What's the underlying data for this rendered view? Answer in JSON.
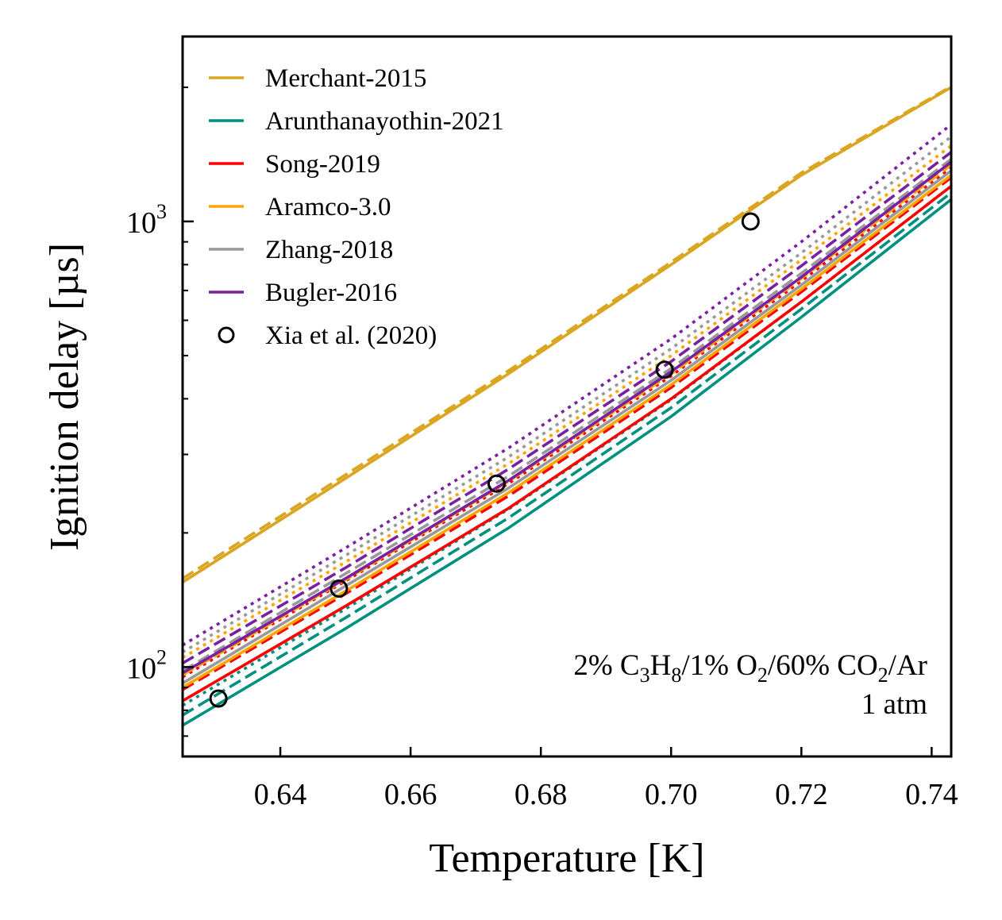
{
  "chart_data": {
    "type": "line",
    "xlabel": "Temperature [K]",
    "ylabel": "Ignition delay [µs]",
    "yscale": "log",
    "xlim": [
      0.625,
      0.743
    ],
    "ylim": [
      63,
      2600
    ],
    "xticks": [
      "0.64",
      "0.66",
      "0.68",
      "0.70",
      "0.72",
      "0.74"
    ],
    "yticks": [
      {
        "base": "10",
        "exp": "2"
      },
      {
        "base": "10",
        "exp": "3"
      }
    ],
    "legend_position": "upper-left",
    "annotation": {
      "line1": {
        "a": "2% C",
        "b": "3",
        "c": "H",
        "d": "8",
        "e": "/1% O",
        "f": "2",
        "g": "/60% CO",
        "h": "2",
        "i": "/Ar"
      },
      "line2": "1 atm"
    },
    "line_styles_note": "solid, dashed and dotted variants per mechanism",
    "series": [
      {
        "name": "Merchant-2015",
        "color": "#DAA520",
        "solid": [
          [
            0.625,
            155
          ],
          [
            0.65,
            265
          ],
          [
            0.675,
            455
          ],
          [
            0.7,
            800
          ],
          [
            0.72,
            1270
          ],
          [
            0.743,
            2000
          ]
        ],
        "dashed": [
          [
            0.625,
            158
          ],
          [
            0.65,
            270
          ],
          [
            0.675,
            462
          ],
          [
            0.7,
            810
          ],
          [
            0.72,
            1285
          ],
          [
            0.743,
            2010
          ]
        ],
        "dotted": null
      },
      {
        "name": "Arunthanayothin-2021",
        "color": "#009080",
        "solid": [
          [
            0.625,
            74
          ],
          [
            0.65,
            122
          ],
          [
            0.675,
            205
          ],
          [
            0.7,
            365
          ],
          [
            0.72,
            610
          ],
          [
            0.743,
            1120
          ]
        ],
        "dashed": [
          [
            0.625,
            78
          ],
          [
            0.65,
            129
          ],
          [
            0.675,
            216
          ],
          [
            0.7,
            382
          ],
          [
            0.72,
            636
          ],
          [
            0.743,
            1160
          ]
        ],
        "dotted": [
          [
            0.625,
            82
          ],
          [
            0.65,
            135
          ],
          [
            0.675,
            226
          ],
          [
            0.7,
            398
          ],
          [
            0.72,
            660
          ],
          [
            0.743,
            1200
          ]
        ]
      },
      {
        "name": "Song-2019",
        "color": "#FF0000",
        "solid": [
          [
            0.625,
            84
          ],
          [
            0.65,
            137
          ],
          [
            0.675,
            227
          ],
          [
            0.7,
            400
          ],
          [
            0.72,
            660
          ],
          [
            0.743,
            1200
          ]
        ],
        "dashed": [
          [
            0.625,
            89
          ],
          [
            0.65,
            146
          ],
          [
            0.675,
            242
          ],
          [
            0.7,
            424
          ],
          [
            0.72,
            695
          ],
          [
            0.743,
            1255
          ]
        ],
        "dotted": [
          [
            0.625,
            95
          ],
          [
            0.65,
            156
          ],
          [
            0.675,
            258
          ],
          [
            0.7,
            450
          ],
          [
            0.72,
            735
          ],
          [
            0.743,
            1320
          ]
        ]
      },
      {
        "name": "Aramco-3.0",
        "color": "#FFA500",
        "solid": [
          [
            0.625,
            90
          ],
          [
            0.65,
            148
          ],
          [
            0.675,
            246
          ],
          [
            0.7,
            430
          ],
          [
            0.72,
            705
          ],
          [
            0.743,
            1270
          ]
        ],
        "dashed": [
          [
            0.625,
            96
          ],
          [
            0.65,
            157
          ],
          [
            0.675,
            261
          ],
          [
            0.7,
            455
          ],
          [
            0.72,
            745
          ],
          [
            0.743,
            1340
          ]
        ],
        "dotted": [
          [
            0.625,
            105
          ],
          [
            0.65,
            172
          ],
          [
            0.675,
            286
          ],
          [
            0.7,
            500
          ],
          [
            0.72,
            820
          ],
          [
            0.743,
            1480
          ]
        ]
      },
      {
        "name": "Zhang-2018",
        "color": "#999999",
        "solid": [
          [
            0.625,
            92
          ],
          [
            0.65,
            152
          ],
          [
            0.675,
            252
          ],
          [
            0.7,
            440
          ],
          [
            0.72,
            720
          ],
          [
            0.743,
            1300
          ]
        ],
        "dashed": [
          [
            0.625,
            98
          ],
          [
            0.65,
            162
          ],
          [
            0.675,
            268
          ],
          [
            0.7,
            468
          ],
          [
            0.72,
            765
          ],
          [
            0.743,
            1380
          ]
        ],
        "dotted": [
          [
            0.625,
            108
          ],
          [
            0.65,
            178
          ],
          [
            0.675,
            296
          ],
          [
            0.7,
            518
          ],
          [
            0.72,
            850
          ],
          [
            0.743,
            1550
          ]
        ]
      },
      {
        "name": "Bugler-2016",
        "color": "#7B1FA2",
        "solid": [
          [
            0.625,
            97
          ],
          [
            0.65,
            158
          ],
          [
            0.675,
            262
          ],
          [
            0.7,
            460
          ],
          [
            0.72,
            750
          ],
          [
            0.743,
            1360
          ]
        ],
        "dashed": [
          [
            0.625,
            102
          ],
          [
            0.65,
            167
          ],
          [
            0.675,
            278
          ],
          [
            0.7,
            485
          ],
          [
            0.72,
            795
          ],
          [
            0.743,
            1430
          ]
        ],
        "dotted": [
          [
            0.625,
            112
          ],
          [
            0.65,
            185
          ],
          [
            0.675,
            310
          ],
          [
            0.7,
            545
          ],
          [
            0.72,
            900
          ],
          [
            0.743,
            1650
          ]
        ]
      }
    ],
    "scatter": {
      "name": "Xia et al. (2020)",
      "points": [
        [
          0.6305,
          85
        ],
        [
          0.649,
          150
        ],
        [
          0.6732,
          258
        ],
        [
          0.699,
          465
        ],
        [
          0.7122,
          1000
        ]
      ]
    }
  }
}
